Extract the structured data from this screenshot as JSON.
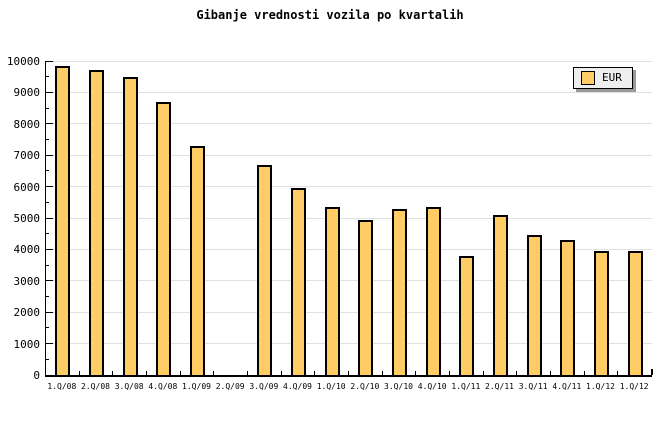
{
  "colors": {
    "background": "#FFFFFF",
    "bar_fill": "#FFCC66",
    "bar_border": "#000000",
    "grid": "#E0E0E0",
    "axis": "#000000",
    "text": "#000000",
    "legend_bg": "#EEEEEE",
    "legend_border": "#000000",
    "legend_shadow": "#999999"
  },
  "legend": {
    "label": "EUR",
    "position": "top-right",
    "swatch_color": "#FFCC66"
  },
  "chart_data": {
    "type": "bar",
    "title": "Gibanje vrednosti vozila po kvartalih",
    "xlabel": "",
    "ylabel": "",
    "categories": [
      "1.Q/08",
      "2.Q/08",
      "3.Q/08",
      "4.Q/08",
      "1.Q/09",
      "2.Q/09",
      "3.Q/09",
      "4.Q/09",
      "1.Q/10",
      "2.Q/10",
      "3.Q/10",
      "4.Q/10",
      "1.Q/11",
      "2.Q/11",
      "3.Q/11",
      "4.Q/11",
      "1.Q/12",
      "1.Q/12"
    ],
    "series": [
      {
        "name": "EUR",
        "values": [
          9850,
          9700,
          9500,
          8700,
          7300,
          null,
          6700,
          5950,
          5350,
          4950,
          5300,
          5350,
          3800,
          5100,
          4450,
          4300,
          3950,
          3950
        ]
      }
    ],
    "values": [
      9850,
      9700,
      9500,
      8700,
      7300,
      null,
      6700,
      5950,
      5350,
      4950,
      5300,
      5350,
      3800,
      5100,
      4450,
      4300,
      3950,
      3950
    ],
    "ylim": [
      0,
      10000
    ],
    "ytick_step": 1000,
    "minor_tick_step": 500,
    "ytick_labels": [
      "0",
      "1000",
      "2000",
      "3000",
      "4000",
      "5000",
      "6000",
      "7000",
      "8000",
      "9000",
      "10000"
    ],
    "grid": "horizontal-major",
    "legend_entries": [
      "EUR"
    ],
    "legend_position": "top-right"
  }
}
